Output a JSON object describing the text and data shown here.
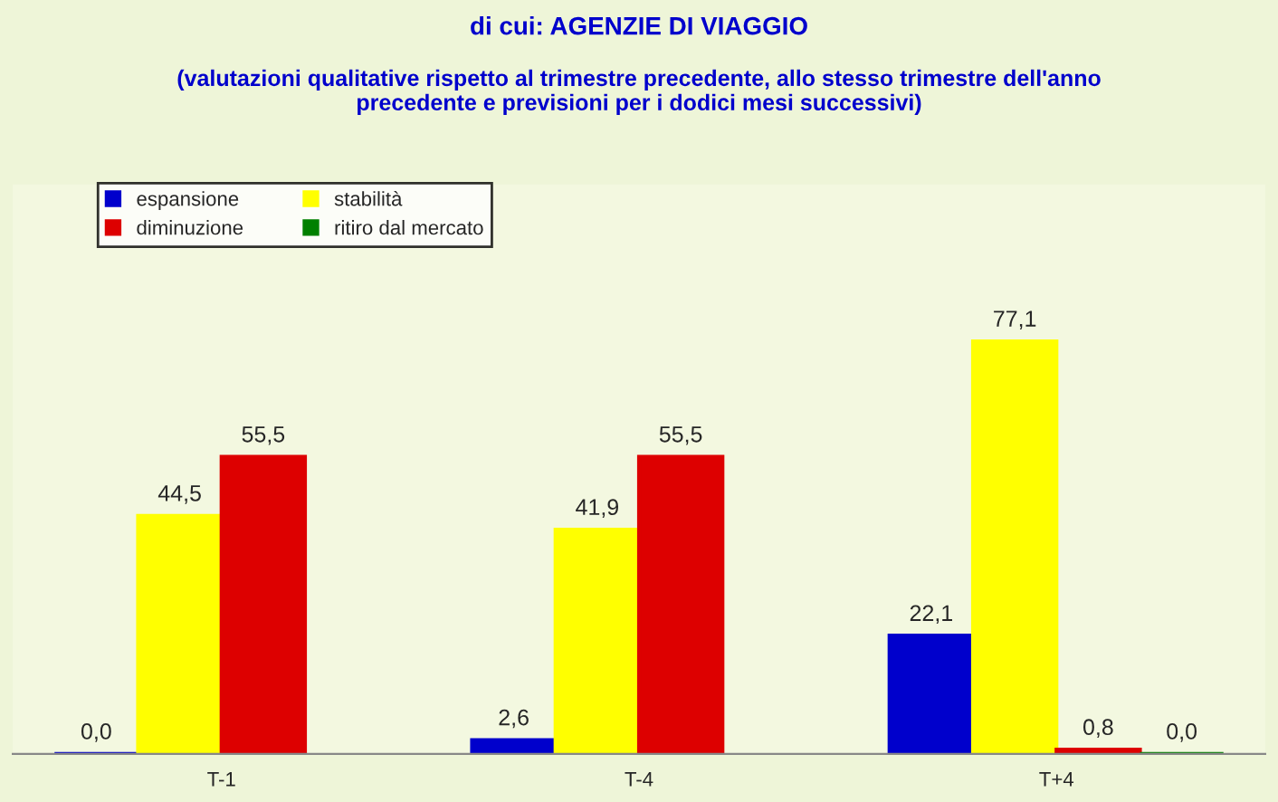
{
  "chart_data": {
    "type": "bar",
    "title": "di cui: AGENZIE DI VIAGGIO",
    "subtitle": "(valutazioni qualitative rispetto al trimestre precedente, allo stesso trimestre dell'anno\nprecedente e previsioni per i dodici mesi successivi)",
    "categories": [
      "T-1",
      "T-4",
      "T+4"
    ],
    "series": [
      {
        "name": "espansione",
        "color": "#0000cc",
        "values": [
          0.0,
          2.6,
          22.1
        ],
        "value_labels": [
          "0,0",
          "2,6",
          "22,1"
        ]
      },
      {
        "name": "stabilità",
        "color": "#ffff00",
        "values": [
          44.5,
          41.9,
          77.1
        ],
        "value_labels": [
          "44,5",
          "41,9",
          "77,1"
        ]
      },
      {
        "name": "diminuzione",
        "color": "#dd0000",
        "values": [
          55.5,
          55.5,
          0.8
        ],
        "value_labels": [
          "55,5",
          "55,5",
          "0,8"
        ]
      },
      {
        "name": "ritiro dal mercato",
        "color": "#008000",
        "values": [
          null,
          null,
          0.0
        ],
        "value_labels": [
          null,
          null,
          "0,0"
        ]
      }
    ],
    "legend": "top left",
    "grid": false
  }
}
